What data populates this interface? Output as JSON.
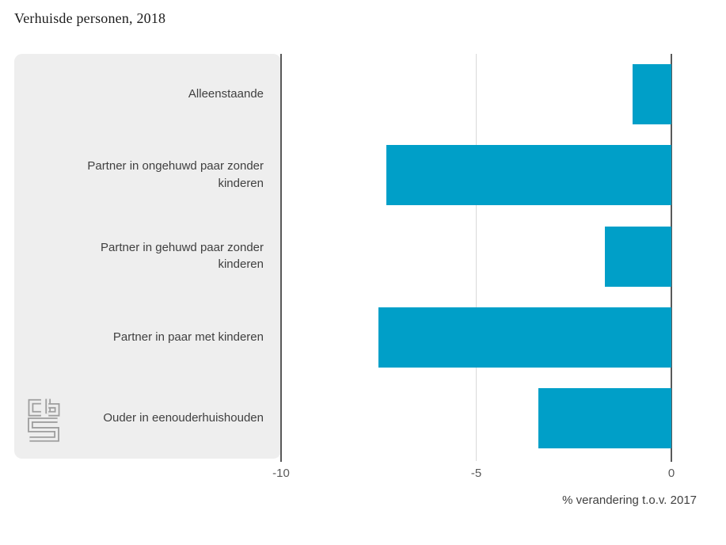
{
  "title": "Verhuisde personen, 2018",
  "chart_data": {
    "type": "bar",
    "orientation": "horizontal",
    "title": "Verhuisde personen, 2018",
    "categories": [
      "Alleenstaande",
      "Partner in ongehuwd paar zonder kinderen",
      "Partner in gehuwd paar zonder kinderen",
      "Partner in paar met kinderen",
      "Ouder in eenouderhuishouden"
    ],
    "values": [
      -1.0,
      -7.3,
      -1.7,
      -7.5,
      -3.4
    ],
    "xlabel": "% verandering t.o.v. 2017",
    "ylabel": "",
    "xlim": [
      -10,
      0
    ],
    "xticks": [
      -10,
      -5,
      0
    ],
    "xtick_labels": [
      "-10",
      "-5",
      "0"
    ],
    "grid": "vertical line at -5, solid axis lines at -10 and 0",
    "legend": "none",
    "bar_color": "#009fc8"
  },
  "axis": {
    "title": "% verandering t.o.v. 2017"
  },
  "branding": {
    "logo": "cbs-logo"
  },
  "colors": {
    "bar": "#009fc8",
    "panel_background": "#eeeeee",
    "axis_line": "#595959",
    "grid_line": "#d9d9d9",
    "tick_text": "#595959",
    "label_text": "#404040",
    "title_text": "#1c1c1c",
    "logo_gray": "#9e9e9e"
  }
}
